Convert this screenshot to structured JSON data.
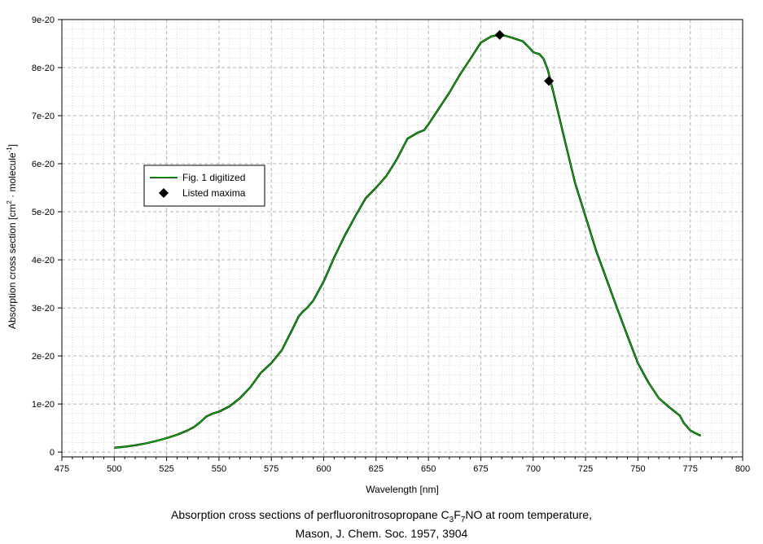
{
  "chart_data": {
    "type": "line",
    "xlabel": "Wavelength [nm]",
    "ylabel_main": "Absorption cross section [cm",
    "ylabel_sup1": "2",
    "ylabel_mid": " · molecule",
    "ylabel_sup2": "-1",
    "ylabel_end": "]",
    "xlim": [
      475,
      800
    ],
    "ylim": [
      -1e-21,
      9e-20
    ],
    "x_ticks": [
      475,
      500,
      525,
      550,
      575,
      600,
      625,
      650,
      675,
      700,
      725,
      750,
      775,
      800
    ],
    "x_tick_labels": [
      "475",
      "500",
      "525",
      "550",
      "575",
      "600",
      "625",
      "650",
      "675",
      "700",
      "725",
      "750",
      "775",
      "800"
    ],
    "y_ticks": [
      0,
      1e-20,
      2e-20,
      3e-20,
      4e-20,
      5e-20,
      6e-20,
      7e-20,
      8e-20,
      9e-20
    ],
    "y_tick_labels": [
      "0",
      "1e-20",
      "2e-20",
      "3e-20",
      "4e-20",
      "5e-20",
      "6e-20",
      "7e-20",
      "8e-20",
      "9e-20"
    ],
    "grid": true,
    "legend_placement": "left",
    "series": [
      {
        "name": "Fig. 1 digitized",
        "style": "line",
        "color": "#00cc00",
        "x": [
          500,
          505,
          510,
          515,
          520,
          525,
          530,
          535,
          538,
          541,
          544,
          547,
          550,
          555,
          560,
          565,
          570,
          575,
          580,
          585,
          588,
          590,
          592,
          595,
          600,
          605,
          610,
          615,
          620,
          625,
          630,
          635,
          640,
          645,
          648,
          650,
          655,
          660,
          665,
          670,
          675,
          680,
          684,
          687,
          690,
          695,
          698,
          700,
          703,
          705,
          707,
          710,
          715,
          720,
          725,
          730,
          735,
          740,
          745,
          750,
          755,
          760,
          765,
          770,
          772,
          775,
          778,
          780
        ],
        "y": [
          9e-22,
          1.1e-21,
          1.4e-21,
          1.8e-21,
          2.3e-21,
          2.9e-21,
          3.6e-21,
          4.5e-21,
          5.2e-21,
          6.2e-21,
          7.4e-21,
          8e-21,
          8.4e-21,
          9.5e-21,
          1.12e-20,
          1.35e-20,
          1.65e-20,
          1.85e-20,
          2.12e-20,
          2.55e-20,
          2.82e-20,
          2.92e-20,
          3e-20,
          3.15e-20,
          3.55e-20,
          4.05e-20,
          4.5e-20,
          4.9e-20,
          5.28e-20,
          5.5e-20,
          5.75e-20,
          6.1e-20,
          6.52e-20,
          6.65e-20,
          6.7e-20,
          6.82e-20,
          7.15e-20,
          7.48e-20,
          7.85e-20,
          8.18e-20,
          8.52e-20,
          8.65e-20,
          8.68e-20,
          8.66e-20,
          8.62e-20,
          8.55e-20,
          8.42e-20,
          8.32e-20,
          8.28e-20,
          8.18e-20,
          7.95e-20,
          7.42e-20,
          6.5e-20,
          5.6e-20,
          4.9e-20,
          4.2e-20,
          3.6e-20,
          3e-20,
          2.42e-20,
          1.85e-20,
          1.45e-20,
          1.12e-20,
          9.3e-21,
          7.6e-21,
          6e-21,
          4.5e-21,
          3.8e-21,
          3.4e-21
        ]
      },
      {
        "name": "Listed maxima",
        "style": "marker",
        "marker": "diamond",
        "color": "#000000",
        "x": [
          684,
          707.5
        ],
        "y": [
          8.68e-20,
          7.72e-20
        ]
      }
    ]
  },
  "caption": {
    "line1_pre": "Absorption cross sections of perfluoronitrosopropane C",
    "sub1": "3",
    "mid1": "F",
    "sub2": "7",
    "line1_post": "NO at room temperature,",
    "line2": "Mason, J. Chem. Soc. 1957, 3904"
  }
}
